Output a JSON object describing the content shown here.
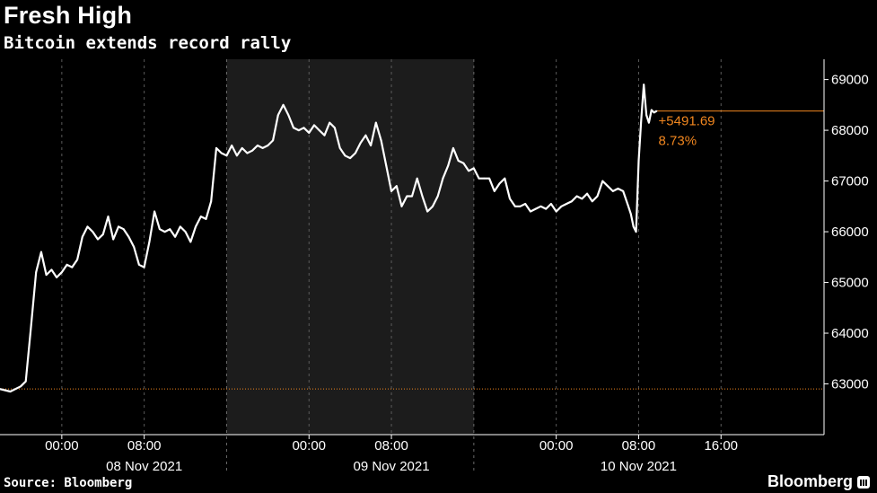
{
  "header": {
    "title": "Fresh High",
    "subtitle": "Bitcoin extends record rally"
  },
  "footer": {
    "source": "Source: Bloomberg",
    "brand": "Bloomberg"
  },
  "colors": {
    "background": "#000000",
    "line": "#ffffff",
    "shade": "#1c1c1c",
    "annotation": "#f0861f"
  },
  "chart_data": {
    "type": "line",
    "title": "Fresh High",
    "subtitle": "Bitcoin extends record rally",
    "xlabel": "",
    "ylabel": "",
    "x_range": [
      "07 Nov 2021 18:00",
      "11 Nov 2021 02:00"
    ],
    "ylim": [
      62000,
      69400
    ],
    "yticks": [
      63000,
      64000,
      65000,
      66000,
      67000,
      68000,
      69000
    ],
    "ytick_labels": [
      "63000",
      "64000",
      "65000",
      "66000",
      "67000",
      "68000",
      "69000"
    ],
    "y_axis_side": "right",
    "x_time_labels": [
      {
        "time": "08 Nov 2021 00:00",
        "label": "00:00"
      },
      {
        "time": "08 Nov 2021 08:00",
        "label": "08:00"
      },
      {
        "time": "09 Nov 2021 00:00",
        "label": "00:00"
      },
      {
        "time": "09 Nov 2021 08:00",
        "label": "08:00"
      },
      {
        "time": "10 Nov 2021 00:00",
        "label": "00:00"
      },
      {
        "time": "10 Nov 2021 08:00",
        "label": "08:00"
      },
      {
        "time": "10 Nov 2021 16:00",
        "label": "16:00"
      }
    ],
    "date_labels": [
      {
        "center": "08 Nov 2021 08:00",
        "label": "08 Nov 2021"
      },
      {
        "center": "09 Nov 2021 08:00",
        "label": "09 Nov 2021"
      },
      {
        "center": "10 Nov 2021 08:00",
        "label": "10 Nov 2021"
      }
    ],
    "day_boundaries": [
      "08 Nov 2021 16:00",
      "09 Nov 2021 16:00"
    ],
    "shaded_period": {
      "start": "08 Nov 2021 16:00",
      "end": "09 Nov 2021 16:00"
    },
    "reference_lines": [
      {
        "value": 62900,
        "style": "dotted",
        "color": "#f0861f"
      },
      {
        "value": 68380,
        "style": "solid",
        "color": "#f0861f"
      }
    ],
    "annotation": {
      "change": "+5491.69",
      "percent": "8.73%"
    },
    "grid": true,
    "grid_style": "vertical dashed at time ticks",
    "series": [
      {
        "x": [
          "07 Nov 2021 18:00",
          "07 Nov 2021 19:00",
          "07 Nov 2021 20:00",
          "07 Nov 2021 20:30",
          "07 Nov 2021 21:00",
          "07 Nov 2021 21:30",
          "07 Nov 2021 22:00",
          "07 Nov 2021 22:30",
          "07 Nov 2021 23:00",
          "07 Nov 2021 23:30",
          "08 Nov 2021 00:00",
          "08 Nov 2021 00:30",
          "08 Nov 2021 01:00",
          "08 Nov 2021 01:30",
          "08 Nov 2021 02:00",
          "08 Nov 2021 02:30",
          "08 Nov 2021 03:00",
          "08 Nov 2021 03:30",
          "08 Nov 2021 04:00",
          "08 Nov 2021 04:30",
          "08 Nov 2021 05:00",
          "08 Nov 2021 05:30",
          "08 Nov 2021 06:00",
          "08 Nov 2021 06:30",
          "08 Nov 2021 07:00",
          "08 Nov 2021 07:30",
          "08 Nov 2021 08:00",
          "08 Nov 2021 08:30",
          "08 Nov 2021 09:00",
          "08 Nov 2021 09:30",
          "08 Nov 2021 10:00",
          "08 Nov 2021 10:30",
          "08 Nov 2021 11:00",
          "08 Nov 2021 11:30",
          "08 Nov 2021 12:00",
          "08 Nov 2021 12:30",
          "08 Nov 2021 13:00",
          "08 Nov 2021 13:30",
          "08 Nov 2021 14:00",
          "08 Nov 2021 14:30",
          "08 Nov 2021 15:00",
          "08 Nov 2021 15:30",
          "08 Nov 2021 16:00",
          "08 Nov 2021 16:30",
          "08 Nov 2021 17:00",
          "08 Nov 2021 17:30",
          "08 Nov 2021 18:00",
          "08 Nov 2021 18:30",
          "08 Nov 2021 19:00",
          "08 Nov 2021 19:30",
          "08 Nov 2021 20:00",
          "08 Nov 2021 20:30",
          "08 Nov 2021 21:00",
          "08 Nov 2021 21:30",
          "08 Nov 2021 22:00",
          "08 Nov 2021 22:30",
          "08 Nov 2021 23:00",
          "08 Nov 2021 23:30",
          "09 Nov 2021 00:00",
          "09 Nov 2021 00:30",
          "09 Nov 2021 01:00",
          "09 Nov 2021 01:30",
          "09 Nov 2021 02:00",
          "09 Nov 2021 02:30",
          "09 Nov 2021 03:00",
          "09 Nov 2021 03:30",
          "09 Nov 2021 04:00",
          "09 Nov 2021 04:30",
          "09 Nov 2021 05:00",
          "09 Nov 2021 05:30",
          "09 Nov 2021 06:00",
          "09 Nov 2021 06:30",
          "09 Nov 2021 07:00",
          "09 Nov 2021 07:30",
          "09 Nov 2021 08:00",
          "09 Nov 2021 08:30",
          "09 Nov 2021 09:00",
          "09 Nov 2021 09:30",
          "09 Nov 2021 10:00",
          "09 Nov 2021 10:30",
          "09 Nov 2021 11:00",
          "09 Nov 2021 11:30",
          "09 Nov 2021 12:00",
          "09 Nov 2021 12:30",
          "09 Nov 2021 13:00",
          "09 Nov 2021 13:30",
          "09 Nov 2021 14:00",
          "09 Nov 2021 14:30",
          "09 Nov 2021 15:00",
          "09 Nov 2021 15:30",
          "09 Nov 2021 16:00",
          "09 Nov 2021 16:30",
          "09 Nov 2021 17:00",
          "09 Nov 2021 17:30",
          "09 Nov 2021 18:00",
          "09 Nov 2021 18:30",
          "09 Nov 2021 19:00",
          "09 Nov 2021 19:30",
          "09 Nov 2021 20:00",
          "09 Nov 2021 20:30",
          "09 Nov 2021 21:00",
          "09 Nov 2021 21:30",
          "09 Nov 2021 22:00",
          "09 Nov 2021 22:30",
          "09 Nov 2021 23:00",
          "09 Nov 2021 23:30",
          "10 Nov 2021 00:00",
          "10 Nov 2021 00:30",
          "10 Nov 2021 01:00",
          "10 Nov 2021 01:30",
          "10 Nov 2021 02:00",
          "10 Nov 2021 02:30",
          "10 Nov 2021 03:00",
          "10 Nov 2021 03:30",
          "10 Nov 2021 04:00",
          "10 Nov 2021 04:30",
          "10 Nov 2021 05:00",
          "10 Nov 2021 05:30",
          "10 Nov 2021 06:00",
          "10 Nov 2021 06:30",
          "10 Nov 2021 07:00",
          "10 Nov 2021 07:15",
          "10 Nov 2021 07:30",
          "10 Nov 2021 07:45",
          "10 Nov 2021 08:00",
          "10 Nov 2021 08:15",
          "10 Nov 2021 08:30",
          "10 Nov 2021 08:45",
          "10 Nov 2021 09:00",
          "10 Nov 2021 09:15",
          "10 Nov 2021 09:30",
          "10 Nov 2021 09:45"
        ],
        "values": [
          62900,
          62850,
          62950,
          63050,
          64100,
          65200,
          65600,
          65150,
          65250,
          65100,
          65200,
          65350,
          65300,
          65450,
          65900,
          66100,
          66000,
          65850,
          65950,
          66300,
          65850,
          66100,
          66050,
          65900,
          65700,
          65350,
          65300,
          65800,
          66400,
          66050,
          66000,
          66050,
          65900,
          66100,
          66000,
          65800,
          66100,
          66300,
          66250,
          66600,
          67650,
          67550,
          67500,
          67700,
          67500,
          67650,
          67550,
          67600,
          67700,
          67650,
          67700,
          67800,
          68300,
          68500,
          68300,
          68050,
          68000,
          68050,
          67950,
          68100,
          68000,
          67900,
          68150,
          68050,
          67650,
          67500,
          67450,
          67550,
          67750,
          67900,
          67700,
          68150,
          67800,
          67300,
          66800,
          66900,
          66500,
          66700,
          66700,
          67050,
          66700,
          66400,
          66500,
          66700,
          67050,
          67300,
          67650,
          67400,
          67350,
          67200,
          67250,
          67050,
          67050,
          67050,
          66800,
          66950,
          67050,
          66650,
          66500,
          66500,
          66550,
          66400,
          66450,
          66500,
          66450,
          66550,
          66400,
          66500,
          66550,
          66600,
          66700,
          66650,
          66750,
          66600,
          66700,
          67000,
          66900,
          66800,
          66850,
          66800,
          66500,
          66350,
          66100,
          66000,
          67400,
          68200,
          68900,
          68300,
          68150,
          68400,
          68350,
          68380
        ]
      }
    ]
  }
}
